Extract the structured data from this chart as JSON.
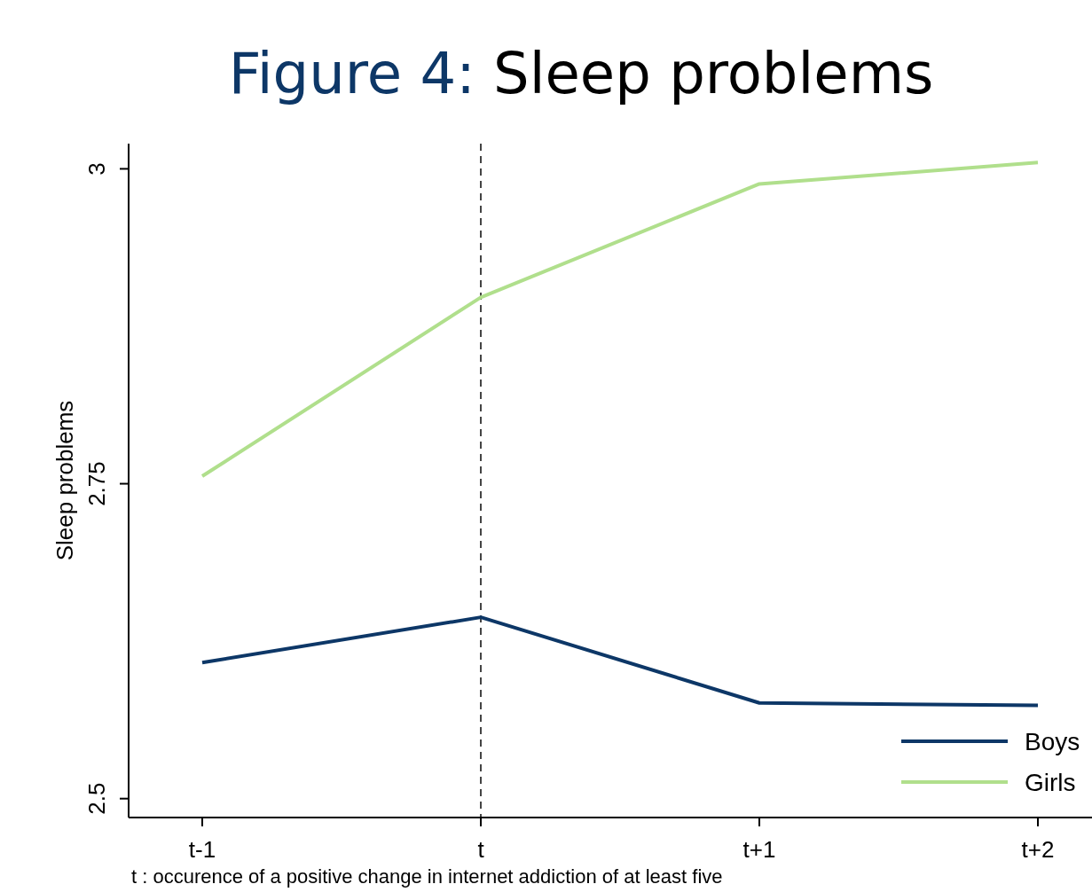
{
  "chart_data": {
    "type": "line",
    "title": "Figure 4: Sleep problems",
    "ylabel": "Sleep problems",
    "categories": [
      "t-1",
      "t",
      "t+1",
      "t+2"
    ],
    "series": [
      {
        "name": "Boys",
        "color": "#0d3767",
        "values": [
          2.608,
          2.644,
          2.576,
          2.574
        ]
      },
      {
        "name": "Girls",
        "color": "#b0df8c",
        "values": [
          2.756,
          2.898,
          2.988,
          3.005
        ]
      }
    ],
    "ylim": [
      2.485,
      3.02
    ],
    "yticks": [
      2.5,
      2.75,
      3
    ],
    "grid": false,
    "legend": "bottom right",
    "marker": "none",
    "line_style": "solid",
    "ref_lines": [
      {
        "axis": "x",
        "value": "t",
        "color": "#444444",
        "line_style": "dashed"
      }
    ],
    "annotations": [
      "t : occurence of a positive change in internet addiction of at least five"
    ]
  }
}
